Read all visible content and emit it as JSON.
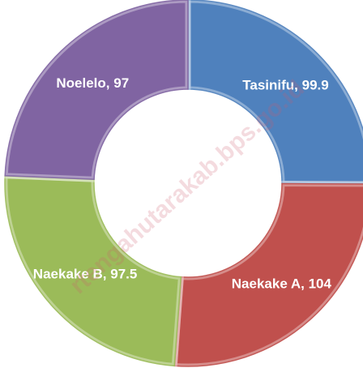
{
  "chart_data": {
    "type": "donut",
    "categories": [
      "Tasinifu",
      "Naekake A",
      "Naekake B",
      "Noelelo"
    ],
    "values": [
      99.9,
      104,
      97.5,
      97
    ],
    "value_labels": [
      "Tasinifu, 99.9",
      "Naekake A, 104",
      "Naekake B, 97.5",
      "Noelelo, 97"
    ],
    "colors": [
      "#4f81bd",
      "#c0504d",
      "#9bbb59",
      "#8064a2"
    ],
    "watermark": "rtengahutarakab.bps.go.id"
  }
}
